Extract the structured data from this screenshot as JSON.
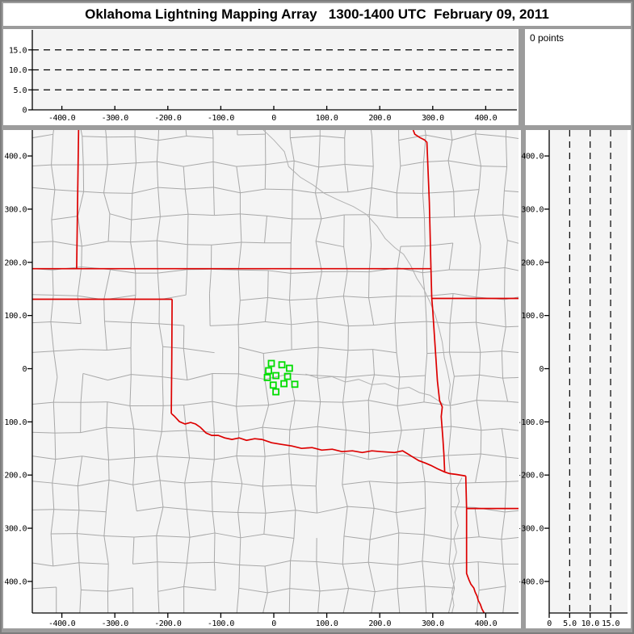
{
  "window_title": "Oklahoma Lightning Mapping Array   1300-1400 UTC  February 09, 2011",
  "points_panel": {
    "label": "0 points"
  },
  "colors": {
    "chrome": "#9c9c9c",
    "panel_bg": "#ffffff",
    "plot_bg": "#f4f4f4",
    "axis": "#000000",
    "county_line": "#a8a8a8",
    "river_line": "#b2b2b2",
    "state_line": "#dd0000",
    "station": "#00dd00"
  },
  "axes": {
    "km_ticks": [
      {
        "v": -400,
        "label": "-400.0"
      },
      {
        "v": -300,
        "label": "-300.0"
      },
      {
        "v": -200,
        "label": "-200.0"
      },
      {
        "v": -100,
        "label": "-100.0"
      },
      {
        "v": 0,
        "label": "0"
      },
      {
        "v": 100,
        "label": "100.0"
      },
      {
        "v": 200,
        "label": "200.0"
      },
      {
        "v": 300,
        "label": "300.0"
      },
      {
        "v": 400,
        "label": "400.0"
      }
    ],
    "alt_ticks": [
      {
        "v": 0,
        "label": "0"
      },
      {
        "v": 5,
        "label": "5.0"
      },
      {
        "v": 10,
        "label": "10.0"
      },
      {
        "v": 15,
        "label": "15.0"
      }
    ],
    "alt_reference_lines_km": [
      5,
      10,
      15
    ]
  },
  "chart_data": {
    "type": "scatter",
    "title": "Oklahoma Lightning Mapping Array 1300-1400 UTC February 09, 2011",
    "points_total": 0,
    "lma_points": [],
    "x_range_km": [
      -456,
      462
    ],
    "y_range_km": [
      -459,
      449
    ],
    "alt_range_km": [
      0,
      20
    ],
    "stations_km": [
      [
        -4.6,
        9.9
      ],
      [
        15.3,
        7.3
      ],
      [
        29.5,
        0.8
      ],
      [
        -9.8,
        -3.8
      ],
      [
        -12.2,
        -16.6
      ],
      [
        4.0,
        -13.0
      ],
      [
        26.0,
        -14.5
      ],
      [
        -1.1,
        -30.8
      ],
      [
        19.2,
        -28.2
      ],
      [
        39.7,
        -29.3
      ],
      [
        4.0,
        -43.5
      ]
    ],
    "state_borders_km": [
      [
        [
          -368.5,
          448.7
        ],
        [
          -372.1,
          188.0
        ]
      ],
      [
        [
          -456.0,
          188.0
        ],
        [
          296.6,
          188.0
        ]
      ],
      [
        [
          -456.0,
          130.6
        ],
        [
          -191.9,
          130.6
        ]
      ],
      [
        [
          -191.9,
          130.6
        ],
        [
          -192.5,
          20.0
        ],
        [
          -193.4,
          -84.3
        ]
      ],
      [
        [
          -193.4,
          -84.3
        ],
        [
          -188.0,
          -89.0
        ],
        [
          -178.2,
          -99.5
        ],
        [
          -167.5,
          -104.1
        ],
        [
          -156.8,
          -101.1
        ],
        [
          -147.6,
          -104.1
        ],
        [
          -138.5,
          -110.2
        ],
        [
          -127.8,
          -120.9
        ],
        [
          -117.1,
          -125.5
        ],
        [
          -104.9,
          -125.5
        ],
        [
          -92.7,
          -130.1
        ],
        [
          -78.9,
          -133.1
        ],
        [
          -65.2,
          -130.1
        ],
        [
          -51.5,
          -134.7
        ],
        [
          -36.2,
          -131.6
        ],
        [
          -22.4,
          -133.1
        ],
        [
          -4.1,
          -139.2
        ],
        [
          14.2,
          -142.3
        ],
        [
          34.0,
          -145.3
        ],
        [
          52.4,
          -149.9
        ],
        [
          72.2,
          -148.4
        ],
        [
          90.5,
          -153.0
        ],
        [
          110.4,
          -151.4
        ],
        [
          128.7,
          -156.0
        ],
        [
          148.5,
          -154.5
        ],
        [
          166.9,
          -157.6
        ],
        [
          185.2,
          -154.5
        ],
        [
          202.0,
          -156.0
        ],
        [
          227.9,
          -157.6
        ],
        [
          243.2,
          -154.5
        ],
        [
          258.5,
          -163.7
        ],
        [
          273.7,
          -172.8
        ],
        [
          285.9,
          -177.4
        ],
        [
          296.6,
          -182.0
        ],
        [
          308.9,
          -188.1
        ],
        [
          322.6,
          -194.2
        ],
        [
          331.8,
          -197.3
        ],
        [
          344.0,
          -198.8
        ],
        [
          353.1,
          -200.3
        ],
        [
          362.3,
          -201.8
        ]
      ],
      [
        [
          263.1,
          448.7
        ],
        [
          266.1,
          440.9
        ],
        [
          275.3,
          434.8
        ],
        [
          284.4,
          430.2
        ],
        [
          289.0,
          425.6
        ],
        [
          293.6,
          312.7
        ],
        [
          296.6,
          188.0
        ],
        [
          298.2,
          132.1
        ],
        [
          299.7,
          114.2
        ],
        [
          305.8,
          22.6
        ],
        [
          308.9,
          -23.2
        ],
        [
          313.0,
          -60.0
        ],
        [
          318.0,
          -72.0
        ],
        [
          316.0,
          -90.0
        ],
        [
          319.0,
          -130.0
        ],
        [
          321.0,
          -160.0
        ],
        [
          322.6,
          -194.2
        ]
      ],
      [
        [
          298.2,
          132.1
        ],
        [
          462.0,
          132.1
        ]
      ],
      [
        [
          362.3,
          -201.8
        ],
        [
          363.8,
          -262.9
        ]
      ],
      [
        [
          363.8,
          -262.9
        ],
        [
          462.0,
          -262.9
        ]
      ],
      [
        [
          363.8,
          -262.9
        ],
        [
          363.8,
          -385.0
        ],
        [
          368.4,
          -397.3
        ],
        [
          372.0,
          -405.0
        ],
        [
          377.6,
          -412.5
        ],
        [
          380.0,
          -420.0
        ],
        [
          383.7,
          -427.8
        ],
        [
          386.0,
          -436.0
        ],
        [
          389.8,
          -443.0
        ],
        [
          393.0,
          -452.0
        ],
        [
          397.4,
          -460.0
        ]
      ]
    ],
    "rivers_km": [
      [
        [
          -20,
          449
        ],
        [
          0,
          430
        ],
        [
          20,
          408
        ],
        [
          28,
          380
        ],
        [
          50,
          360
        ],
        [
          75,
          345
        ],
        [
          95,
          330
        ],
        [
          120,
          318
        ],
        [
          150,
          305
        ],
        [
          175,
          290
        ],
        [
          195,
          268
        ],
        [
          210,
          245
        ],
        [
          228,
          228
        ],
        [
          245,
          215
        ],
        [
          258,
          195
        ],
        [
          270,
          170
        ],
        [
          283,
          150
        ],
        [
          295,
          125
        ],
        [
          305,
          100
        ],
        [
          312,
          75
        ],
        [
          318,
          50
        ],
        [
          322,
          20
        ],
        [
          328,
          -5
        ],
        [
          333,
          -30
        ],
        [
          330,
          -55
        ],
        [
          334,
          -75
        ]
      ],
      [
        [
          355,
          -205
        ],
        [
          345,
          -225
        ],
        [
          350,
          -250
        ],
        [
          342,
          -270
        ],
        [
          348,
          -295
        ],
        [
          340,
          -320
        ],
        [
          345,
          -345
        ],
        [
          338,
          -370
        ],
        [
          342,
          -395
        ],
        [
          336,
          -420
        ],
        [
          340,
          -445
        ],
        [
          336,
          -460
        ]
      ],
      [
        [
          60,
          -10
        ],
        [
          85,
          -18
        ],
        [
          110,
          -15
        ],
        [
          135,
          -25
        ],
        [
          160,
          -20
        ],
        [
          185,
          -30
        ],
        [
          210,
          -28
        ],
        [
          235,
          -38
        ],
        [
          255,
          -35
        ],
        [
          275,
          -45
        ],
        [
          295,
          -50
        ],
        [
          310,
          -60
        ],
        [
          322,
          -68
        ]
      ]
    ],
    "county_grid": {
      "spacing_km": 50,
      "jitter_km": 13,
      "seed": 11,
      "drop_fraction": 0.1
    }
  }
}
